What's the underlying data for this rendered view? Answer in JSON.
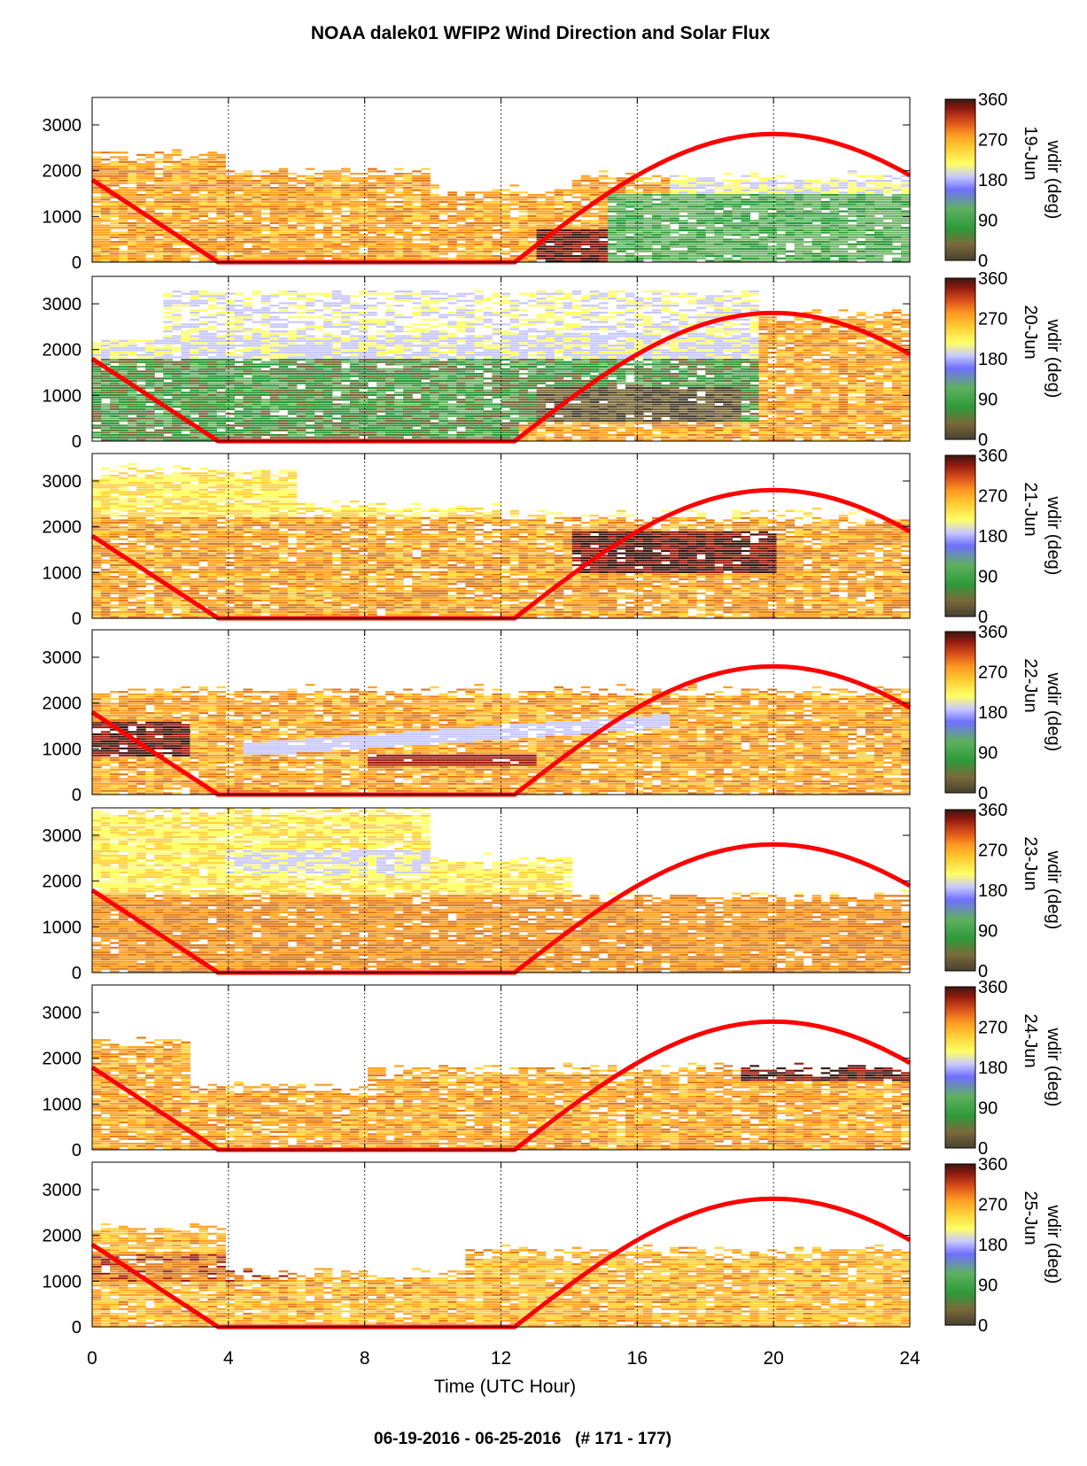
{
  "figure": {
    "title": "NOAA dalek01 WFIP2 Wind Direction and Solar Flux",
    "footer": "06-19-2016 - 06-25-2016   (# 171 - 177)",
    "xlabel": "Time (UTC Hour)"
  },
  "colors": {
    "solar_curve": "#ff0000",
    "colormap": [
      "#4a4030",
      "#7a6a3a",
      "#2e9a3a",
      "#6fb86a",
      "#8c8cff",
      "#c8c8ff",
      "#ffff66",
      "#ffd23c",
      "#ffa020",
      "#e07a1a",
      "#a02010",
      "#3a1810"
    ]
  },
  "chart_data": {
    "type": "heatmap",
    "x_ticks": [
      0,
      4,
      8,
      12,
      16,
      20,
      24
    ],
    "xlim": [
      0,
      24
    ],
    "y_ticks": [
      0,
      1000,
      2000,
      3000
    ],
    "ylim": [
      0,
      3600
    ],
    "colorbar": {
      "label": "wdir (deg)",
      "ticks": [
        0,
        90,
        180,
        270,
        360
      ],
      "range": [
        0,
        360
      ]
    },
    "vertical_gridlines_at": [
      4,
      8,
      12,
      16,
      20
    ],
    "solar_flux_curve": {
      "description_points": [
        [
          0,
          1800
        ],
        [
          3.7,
          0
        ],
        [
          12.4,
          0
        ],
        [
          16,
          1800
        ],
        [
          20,
          2800
        ],
        [
          24,
          1900
        ]
      ]
    },
    "panels": [
      {
        "day_label": "19-Jun"
      },
      {
        "day_label": "20-Jun"
      },
      {
        "day_label": "21-Jun"
      },
      {
        "day_label": "22-Jun"
      },
      {
        "day_label": "23-Jun"
      },
      {
        "day_label": "24-Jun"
      },
      {
        "day_label": "25-Jun"
      }
    ]
  }
}
